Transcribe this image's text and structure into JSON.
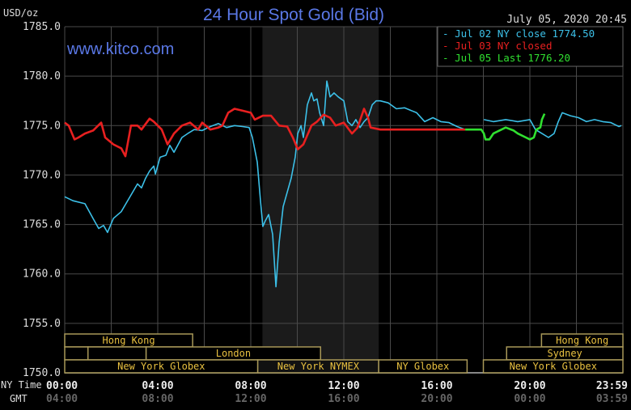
{
  "header": {
    "unit": "USD/oz",
    "title": "24 Hour Spot Gold (Bid)",
    "datetime": "July 05, 2020 20:45",
    "watermark": "www.kitco.com"
  },
  "legend": [
    {
      "label": "Jul 02 NY close 1774.50",
      "color": "#3cc0e8"
    },
    {
      "label": "Jul 03 NY closed",
      "color": "#e82020"
    },
    {
      "label": "Jul 05 Last 1776.20",
      "color": "#30e030"
    }
  ],
  "x_axis": {
    "row1_label": "NY Time",
    "row2_label": "GMT",
    "ny_ticks": [
      "00:00",
      "04:00",
      "08:00",
      "12:00",
      "16:00",
      "20:00",
      "23:59"
    ],
    "gmt_ticks": [
      "04:00",
      "08:00",
      "12:00",
      "16:00",
      "20:00",
      "00:00",
      "03:59"
    ]
  },
  "sessions": [
    {
      "name": "Hong Kong",
      "row": 0,
      "start": 0,
      "end": 5.5
    },
    {
      "name": "Hong Kong",
      "row": 0,
      "start": 20.5,
      "end": 24
    },
    {
      "name": "",
      "row": 1,
      "start": 0,
      "end": 1
    },
    {
      "name": "",
      "row": 1,
      "start": 1,
      "end": 3.5
    },
    {
      "name": "London",
      "row": 1,
      "start": 3.5,
      "end": 11
    },
    {
      "name": "Sydney",
      "row": 1,
      "start": 19,
      "end": 24
    },
    {
      "name": "New York Globex",
      "row": 2,
      "start": 0,
      "end": 8.3
    },
    {
      "name": "New York NYMEX",
      "row": 2,
      "start": 8.3,
      "end": 13.5
    },
    {
      "name": "NY Globex",
      "row": 2,
      "start": 13.5,
      "end": 17.3
    },
    {
      "name": "New York Globex",
      "row": 2,
      "start": 18,
      "end": 24
    }
  ],
  "chart_data": {
    "type": "line",
    "title": "24 Hour Spot Gold (Bid)",
    "ylabel": "USD/oz",
    "xlabel": "NY Time",
    "ylim": [
      1750,
      1785
    ],
    "xlim": [
      0,
      24
    ],
    "yticks": [
      "1785.0",
      "1780.0",
      "1775.0",
      "1770.0",
      "1765.0",
      "1760.0",
      "1755.0",
      "1750.0"
    ],
    "ytick_values": [
      1785,
      1780,
      1775,
      1770,
      1765,
      1760,
      1755,
      1750
    ],
    "shaded_hours": [
      8.5,
      13.5
    ],
    "grid": true,
    "legend_position": "top-right",
    "series": [
      {
        "name": "Jul 02 NY close 1774.50",
        "color": "#3cc0e8",
        "points": [
          [
            0,
            1767.8
          ],
          [
            0.35,
            1767.4
          ],
          [
            0.87,
            1767.1
          ],
          [
            1.22,
            1765.6
          ],
          [
            1.46,
            1764.6
          ],
          [
            1.67,
            1764.9
          ],
          [
            1.84,
            1764.2
          ],
          [
            2.09,
            1765.6
          ],
          [
            2.43,
            1766.3
          ],
          [
            2.78,
            1767.7
          ],
          [
            3.13,
            1769.1
          ],
          [
            3.3,
            1768.7
          ],
          [
            3.48,
            1769.7
          ],
          [
            3.65,
            1770.4
          ],
          [
            3.83,
            1770.9
          ],
          [
            3.9,
            1770.1
          ],
          [
            4.1,
            1771.8
          ],
          [
            4.35,
            1772.0
          ],
          [
            4.52,
            1773.0
          ],
          [
            4.7,
            1772.3
          ],
          [
            5.04,
            1773.8
          ],
          [
            5.29,
            1774.2
          ],
          [
            5.57,
            1774.6
          ],
          [
            5.91,
            1774.5
          ],
          [
            6.26,
            1774.9
          ],
          [
            6.61,
            1775.2
          ],
          [
            6.96,
            1774.8
          ],
          [
            7.3,
            1775.0
          ],
          [
            7.65,
            1774.9
          ],
          [
            7.93,
            1774.8
          ],
          [
            8.07,
            1773.8
          ],
          [
            8.28,
            1771.3
          ],
          [
            8.42,
            1767.3
          ],
          [
            8.52,
            1764.8
          ],
          [
            8.63,
            1765.4
          ],
          [
            8.77,
            1766.0
          ],
          [
            8.94,
            1764.0
          ],
          [
            9.08,
            1758.7
          ],
          [
            9.22,
            1763.2
          ],
          [
            9.39,
            1766.8
          ],
          [
            9.74,
            1769.7
          ],
          [
            9.91,
            1771.8
          ],
          [
            10.02,
            1774.2
          ],
          [
            10.16,
            1775.0
          ],
          [
            10.26,
            1773.8
          ],
          [
            10.43,
            1777.1
          ],
          [
            10.61,
            1778.3
          ],
          [
            10.71,
            1777.5
          ],
          [
            10.85,
            1777.7
          ],
          [
            10.96,
            1776.3
          ],
          [
            11.13,
            1775.0
          ],
          [
            11.27,
            1779.5
          ],
          [
            11.41,
            1777.9
          ],
          [
            11.58,
            1778.3
          ],
          [
            11.76,
            1777.9
          ],
          [
            12.0,
            1777.5
          ],
          [
            12.17,
            1775.4
          ],
          [
            12.35,
            1775.0
          ],
          [
            12.52,
            1775.6
          ],
          [
            12.7,
            1774.8
          ],
          [
            12.87,
            1775.4
          ],
          [
            13.04,
            1775.8
          ],
          [
            13.22,
            1777.1
          ],
          [
            13.39,
            1777.5
          ],
          [
            13.57,
            1777.5
          ],
          [
            13.91,
            1777.3
          ],
          [
            14.26,
            1776.7
          ],
          [
            14.61,
            1776.8
          ],
          [
            15.13,
            1776.3
          ],
          [
            15.48,
            1775.4
          ],
          [
            15.83,
            1775.8
          ],
          [
            16.17,
            1775.4
          ],
          [
            16.52,
            1775.3
          ],
          [
            16.87,
            1774.9
          ],
          [
            17.22,
            1774.6
          ]
        ]
      },
      {
        "name": "Jul 02 NY close 1774.50 (cont.)",
        "color": "#3cc0e8",
        "points": [
          [
            18.02,
            1775.6
          ],
          [
            18.43,
            1775.4
          ],
          [
            18.96,
            1775.6
          ],
          [
            19.48,
            1775.4
          ],
          [
            20.0,
            1775.6
          ],
          [
            20.24,
            1774.6
          ],
          [
            20.52,
            1774.2
          ],
          [
            20.8,
            1773.8
          ],
          [
            21.04,
            1774.2
          ],
          [
            21.22,
            1775.4
          ],
          [
            21.39,
            1776.3
          ],
          [
            21.74,
            1776.0
          ],
          [
            22.09,
            1775.8
          ],
          [
            22.43,
            1775.4
          ],
          [
            22.78,
            1775.6
          ],
          [
            23.13,
            1775.4
          ],
          [
            23.48,
            1775.3
          ],
          [
            23.83,
            1774.9
          ],
          [
            23.93,
            1775.0
          ]
        ]
      },
      {
        "name": "Jul 03 NY closed",
        "color": "#e82020",
        "points": [
          [
            0,
            1775.3
          ],
          [
            0.17,
            1775.0
          ],
          [
            0.42,
            1773.6
          ],
          [
            0.59,
            1773.8
          ],
          [
            0.87,
            1774.2
          ],
          [
            1.22,
            1774.5
          ],
          [
            1.57,
            1775.3
          ],
          [
            1.74,
            1773.8
          ],
          [
            2.09,
            1773.1
          ],
          [
            2.43,
            1772.7
          ],
          [
            2.61,
            1771.9
          ],
          [
            2.85,
            1775.0
          ],
          [
            3.13,
            1775.0
          ],
          [
            3.3,
            1774.6
          ],
          [
            3.65,
            1775.7
          ],
          [
            3.83,
            1775.4
          ],
          [
            4.17,
            1774.6
          ],
          [
            4.42,
            1773.1
          ],
          [
            4.7,
            1774.2
          ],
          [
            5.04,
            1775.0
          ],
          [
            5.39,
            1775.3
          ],
          [
            5.74,
            1774.6
          ],
          [
            5.91,
            1775.3
          ],
          [
            6.26,
            1774.6
          ],
          [
            6.61,
            1774.8
          ],
          [
            6.78,
            1775.0
          ],
          [
            7.03,
            1776.3
          ],
          [
            7.3,
            1776.7
          ],
          [
            7.65,
            1776.5
          ],
          [
            8.0,
            1776.3
          ],
          [
            8.17,
            1775.6
          ],
          [
            8.52,
            1776.0
          ],
          [
            8.87,
            1776.0
          ],
          [
            9.22,
            1775.0
          ],
          [
            9.57,
            1774.9
          ],
          [
            9.81,
            1773.8
          ],
          [
            10.02,
            1772.6
          ],
          [
            10.26,
            1773.1
          ],
          [
            10.61,
            1775.0
          ],
          [
            10.85,
            1775.4
          ],
          [
            11.13,
            1776.1
          ],
          [
            11.41,
            1775.8
          ],
          [
            11.65,
            1775.0
          ],
          [
            12.0,
            1775.3
          ],
          [
            12.35,
            1774.2
          ],
          [
            12.59,
            1774.8
          ],
          [
            12.87,
            1776.7
          ],
          [
            13.04,
            1775.8
          ],
          [
            13.15,
            1774.8
          ],
          [
            13.57,
            1774.6
          ],
          [
            16.7,
            1774.6
          ],
          [
            17.22,
            1774.6
          ]
        ]
      },
      {
        "name": "Jul 05 Last 1776.20",
        "color": "#30e030",
        "points": [
          [
            17.22,
            1774.6
          ],
          [
            17.91,
            1774.6
          ],
          [
            18.02,
            1774.2
          ],
          [
            18.09,
            1773.6
          ],
          [
            18.26,
            1773.6
          ],
          [
            18.43,
            1774.2
          ],
          [
            18.78,
            1774.6
          ],
          [
            18.96,
            1774.8
          ],
          [
            19.3,
            1774.5
          ],
          [
            19.48,
            1774.2
          ],
          [
            19.83,
            1773.8
          ],
          [
            20.0,
            1773.6
          ],
          [
            20.17,
            1773.8
          ],
          [
            20.28,
            1774.6
          ],
          [
            20.45,
            1774.8
          ],
          [
            20.52,
            1775.6
          ],
          [
            20.63,
            1776.2
          ]
        ]
      }
    ]
  }
}
